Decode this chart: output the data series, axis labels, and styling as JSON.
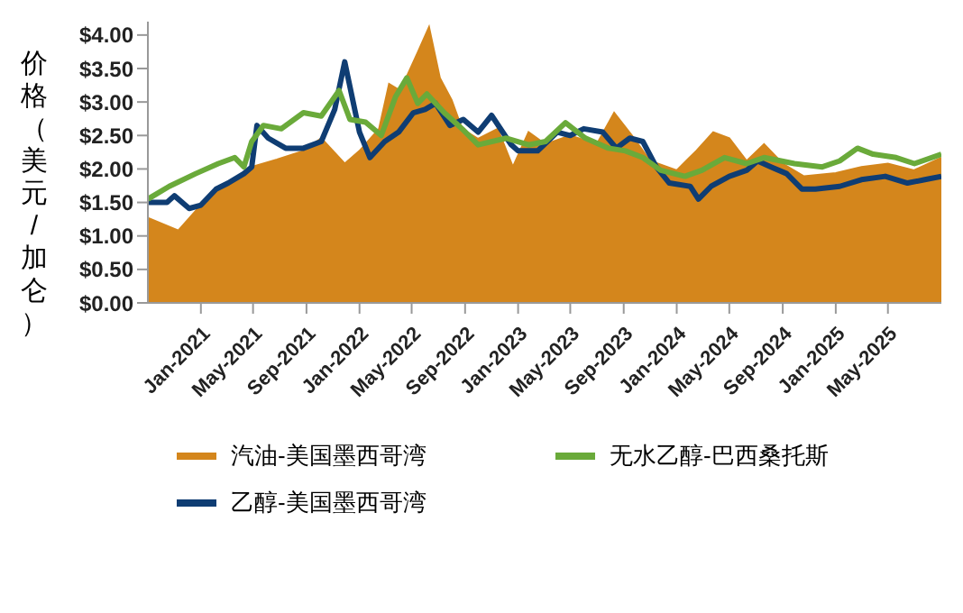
{
  "chart_data": {
    "type": "line",
    "ylabel": "价格（美元/加仑）",
    "xlim": [
      "2020-09-01",
      "2025-09-01"
    ],
    "ylim": [
      0,
      4.2
    ],
    "yticks": [
      {
        "value": 0,
        "label": "$0.00"
      },
      {
        "value": 0.5,
        "label": "$0.50"
      },
      {
        "value": 1,
        "label": "$1.00"
      },
      {
        "value": 1.5,
        "label": "$1.50"
      },
      {
        "value": 2,
        "label": "$2.00"
      },
      {
        "value": 2.5,
        "label": "$2.50"
      },
      {
        "value": 3,
        "label": "$3.00"
      },
      {
        "value": 3.5,
        "label": "$3.50"
      },
      {
        "value": 4,
        "label": "$4.00"
      }
    ],
    "xticks": [
      {
        "value": "2021-01-01",
        "label": "Jan-2021"
      },
      {
        "value": "2021-05-01",
        "label": "May-2021"
      },
      {
        "value": "2021-09-01",
        "label": "Sep-2021"
      },
      {
        "value": "2022-01-01",
        "label": "Jan-2022"
      },
      {
        "value": "2022-05-01",
        "label": "May-2022"
      },
      {
        "value": "2022-09-01",
        "label": "Sep-2022"
      },
      {
        "value": "2023-01-01",
        "label": "Jan-2023"
      },
      {
        "value": "2023-05-01",
        "label": "May-2023"
      },
      {
        "value": "2023-09-01",
        "label": "Sep-2023"
      },
      {
        "value": "2024-01-01",
        "label": "Jan-2024"
      },
      {
        "value": "2024-05-01",
        "label": "May-2024"
      },
      {
        "value": "2024-09-01",
        "label": "Sep-2024"
      },
      {
        "value": "2025-01-01",
        "label": "Jan-2025"
      },
      {
        "value": "2025-05-01",
        "label": "May-2025"
      }
    ],
    "grid": false,
    "legend": "bottom",
    "series": [
      {
        "name": "汽油-美国墨西哥湾",
        "type": "area",
        "color": "#d4861c",
        "x": [
          "2020-09-01",
          "2020-11-10",
          "2021-01-01",
          "2021-02-20",
          "2021-04-28",
          "2021-06-25",
          "2021-08-25",
          "2021-10-05",
          "2021-11-28",
          "2022-01-01",
          "2022-02-15",
          "2022-03-10",
          "2022-04-05",
          "2022-05-15",
          "2022-06-10",
          "2022-07-05",
          "2022-08-01",
          "2022-08-25",
          "2022-10-01",
          "2022-11-15",
          "2022-12-20",
          "2023-01-25",
          "2023-03-05",
          "2023-05-01",
          "2023-07-01",
          "2023-08-10",
          "2023-09-20",
          "2023-11-01",
          "2024-01-01",
          "2024-02-15",
          "2024-03-25",
          "2024-05-01",
          "2024-06-10",
          "2024-07-20",
          "2024-09-01",
          "2024-10-20",
          "2025-01-01",
          "2025-03-01",
          "2025-05-01",
          "2025-06-30",
          "2025-09-01"
        ],
        "values": [
          1.27,
          1.08,
          1.46,
          1.74,
          2.03,
          2.14,
          2.27,
          2.46,
          2.08,
          2.27,
          2.6,
          3.27,
          3.17,
          3.74,
          4.12,
          3.36,
          3.03,
          2.6,
          2.45,
          2.6,
          2.03,
          2.55,
          2.37,
          2.5,
          2.37,
          2.84,
          2.5,
          2.12,
          1.98,
          2.27,
          2.55,
          2.46,
          2.12,
          2.37,
          2.08,
          1.89,
          1.94,
          2.03,
          2.08,
          1.98,
          2.17
        ]
      },
      {
        "name": "乙醇-美国墨西哥湾",
        "type": "line",
        "color": "#0f3d73",
        "x": [
          "2020-09-01",
          "2020-10-15",
          "2020-11-01",
          "2020-12-05",
          "2021-01-01",
          "2021-02-05",
          "2021-03-05",
          "2021-04-10",
          "2021-04-28",
          "2021-05-10",
          "2021-06-05",
          "2021-07-15",
          "2021-08-25",
          "2021-10-05",
          "2021-11-05",
          "2021-11-28",
          "2022-01-01",
          "2022-01-25",
          "2022-02-28",
          "2022-04-01",
          "2022-05-05",
          "2022-06-01",
          "2022-06-25",
          "2022-07-28",
          "2022-08-28",
          "2022-10-01",
          "2022-11-01",
          "2022-12-15",
          "2023-01-01",
          "2023-02-15",
          "2023-04-01",
          "2023-05-01",
          "2023-06-01",
          "2023-07-15",
          "2023-08-15",
          "2023-09-15",
          "2023-10-15",
          "2023-11-15",
          "2023-12-15",
          "2024-02-01",
          "2024-02-20",
          "2024-03-20",
          "2024-05-01",
          "2024-06-10",
          "2024-07-05",
          "2024-08-05",
          "2024-09-10",
          "2024-10-15",
          "2024-11-15",
          "2025-01-10",
          "2025-03-01",
          "2025-04-25",
          "2025-06-15",
          "2025-07-25",
          "2025-09-01"
        ],
        "values": [
          1.5,
          1.5,
          1.6,
          1.41,
          1.46,
          1.7,
          1.79,
          1.93,
          2.03,
          2.65,
          2.46,
          2.31,
          2.31,
          2.41,
          2.89,
          3.6,
          2.55,
          2.17,
          2.41,
          2.55,
          2.84,
          2.89,
          2.98,
          2.65,
          2.74,
          2.55,
          2.8,
          2.37,
          2.27,
          2.27,
          2.55,
          2.5,
          2.6,
          2.55,
          2.31,
          2.46,
          2.41,
          2.03,
          1.79,
          1.74,
          1.55,
          1.74,
          1.89,
          1.98,
          2.12,
          2.03,
          1.93,
          1.7,
          1.7,
          1.74,
          1.84,
          1.89,
          1.79,
          1.84,
          1.89
        ]
      },
      {
        "name": "无水乙醇-巴西桑托斯",
        "type": "line",
        "color": "#6aaa3a",
        "x": [
          "2020-09-01",
          "2020-10-20",
          "2020-12-20",
          "2021-02-10",
          "2021-03-20",
          "2021-04-10",
          "2021-04-28",
          "2021-05-25",
          "2021-07-05",
          "2021-08-25",
          "2021-10-05",
          "2021-11-15",
          "2021-12-10",
          "2022-01-15",
          "2022-02-20",
          "2022-03-25",
          "2022-04-20",
          "2022-05-15",
          "2022-06-05",
          "2022-07-15",
          "2022-08-25",
          "2022-10-01",
          "2022-12-05",
          "2023-01-25",
          "2023-03-05",
          "2023-04-20",
          "2023-06-05",
          "2023-07-28",
          "2023-09-05",
          "2023-10-15",
          "2023-11-25",
          "2024-01-20",
          "2024-02-28",
          "2024-04-20",
          "2024-06-10",
          "2024-07-20",
          "2024-09-28",
          "2024-12-01",
          "2025-01-10",
          "2025-02-20",
          "2025-03-28",
          "2025-05-20",
          "2025-07-01",
          "2025-09-01"
        ],
        "values": [
          1.55,
          1.74,
          1.93,
          2.08,
          2.17,
          2.03,
          2.41,
          2.65,
          2.6,
          2.84,
          2.79,
          3.17,
          2.74,
          2.7,
          2.5,
          3.08,
          3.36,
          2.98,
          3.12,
          2.84,
          2.6,
          2.36,
          2.46,
          2.36,
          2.41,
          2.69,
          2.46,
          2.31,
          2.27,
          2.17,
          1.98,
          1.89,
          1.98,
          2.17,
          2.08,
          2.17,
          2.08,
          2.03,
          2.12,
          2.31,
          2.22,
          2.17,
          2.08,
          2.22
        ]
      }
    ]
  }
}
